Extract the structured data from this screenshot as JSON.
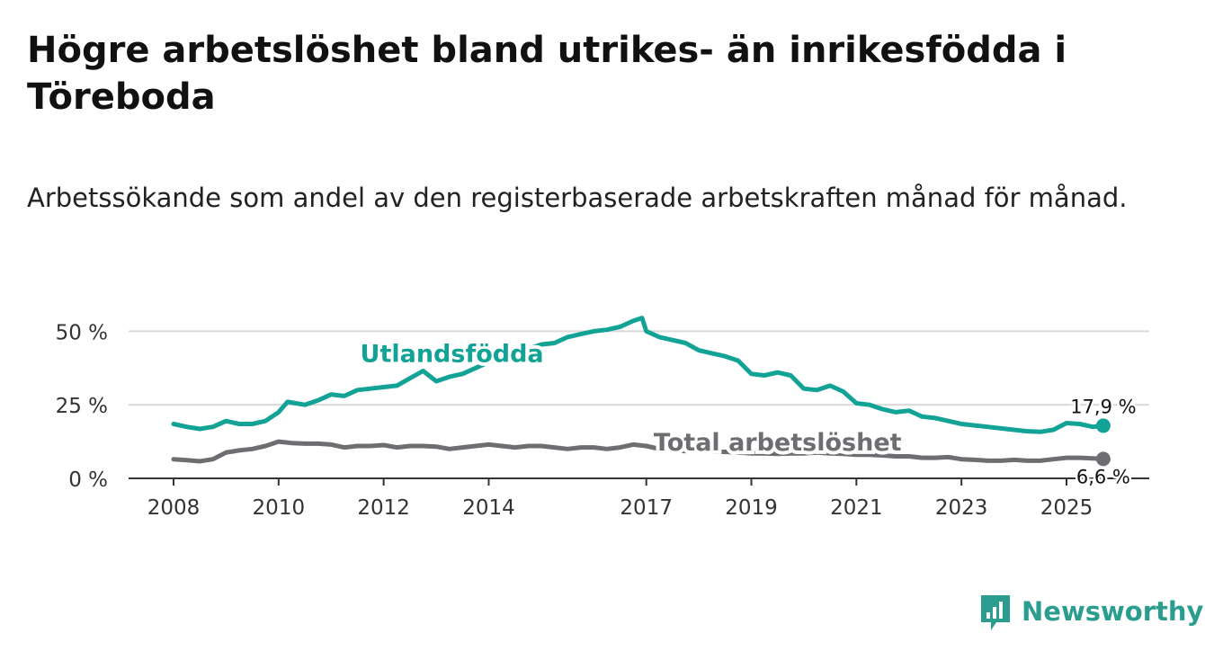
{
  "title": "Högre arbetslöshet bland utrikes- än inrikesfödda i Töreboda",
  "subtitle": "Arbetssökande som andel av den registerbaserade arbetskraften månad för månad.",
  "brand": {
    "name": "Newsworthy",
    "logo_icon": "bar-chart-icon"
  },
  "colors": {
    "foreign": "#13a396",
    "total": "#6d6d72",
    "axis": "#333333",
    "grid": "#d9d9d9",
    "brand": "#2a9d8f"
  },
  "chart_data": {
    "type": "line",
    "title": "",
    "xlabel": "",
    "ylabel": "",
    "ylim": [
      0,
      55
    ],
    "xlim": [
      2007.7,
      2026.5
    ],
    "y_ticks": [
      {
        "value": 0,
        "label": "0 %"
      },
      {
        "value": 25,
        "label": "25 %"
      },
      {
        "value": 50,
        "label": "50 %"
      }
    ],
    "x_ticks": [
      {
        "value": 2008,
        "label": "2008"
      },
      {
        "value": 2010,
        "label": "2010"
      },
      {
        "value": 2012,
        "label": "2012"
      },
      {
        "value": 2014,
        "label": "2014"
      },
      {
        "value": 2017,
        "label": "2017"
      },
      {
        "value": 2019,
        "label": "2019"
      },
      {
        "value": 2021,
        "label": "2021"
      },
      {
        "value": 2023,
        "label": "2023"
      },
      {
        "value": 2025,
        "label": "2025"
      }
    ],
    "series": [
      {
        "name": "Utlandsfödda",
        "color": "#13a396",
        "end_label": "17,9 %",
        "x": [
          2008.0,
          2008.25,
          2008.5,
          2008.75,
          2009.0,
          2009.25,
          2009.5,
          2009.75,
          2010.0,
          2010.17,
          2010.5,
          2010.75,
          2011.0,
          2011.25,
          2011.5,
          2011.75,
          2012.0,
          2012.25,
          2012.5,
          2012.75,
          2013.0,
          2013.25,
          2013.5,
          2013.75,
          2014.0,
          2014.25,
          2014.5,
          2014.75,
          2015.0,
          2015.25,
          2015.5,
          2015.75,
          2016.0,
          2016.25,
          2016.5,
          2016.75,
          2016.92,
          2017.0,
          2017.25,
          2017.5,
          2017.75,
          2018.0,
          2018.25,
          2018.5,
          2018.75,
          2019.0,
          2019.25,
          2019.5,
          2019.75,
          2020.0,
          2020.25,
          2020.5,
          2020.75,
          2021.0,
          2021.25,
          2021.5,
          2021.75,
          2022.0,
          2022.25,
          2022.5,
          2022.75,
          2023.0,
          2023.25,
          2023.5,
          2023.75,
          2024.0,
          2024.25,
          2024.5,
          2024.75,
          2025.0,
          2025.25,
          2025.5,
          2025.7
        ],
        "values": [
          18.5,
          17.5,
          16.8,
          17.5,
          19.5,
          18.5,
          18.5,
          19.5,
          22.5,
          26.0,
          25.0,
          26.5,
          28.5,
          28.0,
          30.0,
          30.5,
          31.0,
          31.5,
          34.0,
          36.5,
          33.0,
          34.5,
          35.5,
          37.5,
          39.5,
          41.0,
          43.0,
          44.0,
          45.5,
          46.0,
          48.0,
          49.0,
          50.0,
          50.5,
          51.5,
          53.5,
          54.5,
          50.0,
          48.0,
          47.0,
          46.0,
          43.5,
          42.5,
          41.5,
          40.0,
          35.5,
          35.0,
          36.0,
          35.0,
          30.5,
          30.0,
          31.5,
          29.5,
          25.5,
          25.0,
          23.5,
          22.5,
          23.0,
          21.0,
          20.5,
          19.5,
          18.5,
          18.0,
          17.5,
          17.0,
          16.5,
          16.0,
          15.8,
          16.5,
          18.8,
          18.5,
          17.5,
          17.9
        ]
      },
      {
        "name": "Total arbetslöshet",
        "color": "#6d6d72",
        "end_label": "6,6 %",
        "x": [
          2008.0,
          2008.25,
          2008.5,
          2008.75,
          2009.0,
          2009.25,
          2009.5,
          2009.75,
          2010.0,
          2010.25,
          2010.5,
          2010.75,
          2011.0,
          2011.25,
          2011.5,
          2011.75,
          2012.0,
          2012.25,
          2012.5,
          2012.75,
          2013.0,
          2013.25,
          2013.5,
          2013.75,
          2014.0,
          2014.25,
          2014.5,
          2014.75,
          2015.0,
          2015.25,
          2015.5,
          2015.75,
          2016.0,
          2016.25,
          2016.5,
          2016.75,
          2017.0,
          2017.25,
          2017.5,
          2017.75,
          2018.0,
          2018.25,
          2018.5,
          2018.75,
          2019.0,
          2019.25,
          2019.5,
          2019.75,
          2020.0,
          2020.25,
          2020.5,
          2020.75,
          2021.0,
          2021.25,
          2021.5,
          2021.75,
          2022.0,
          2022.25,
          2022.5,
          2022.75,
          2023.0,
          2023.25,
          2023.5,
          2023.75,
          2024.0,
          2024.25,
          2024.5,
          2024.75,
          2025.0,
          2025.25,
          2025.5,
          2025.7
        ],
        "values": [
          6.5,
          6.2,
          5.8,
          6.5,
          8.8,
          9.5,
          10.0,
          11.0,
          12.5,
          12.0,
          11.8,
          11.8,
          11.5,
          10.5,
          11.0,
          11.0,
          11.3,
          10.5,
          11.0,
          11.0,
          10.8,
          10.0,
          10.5,
          11.0,
          11.5,
          11.0,
          10.5,
          11.0,
          11.0,
          10.5,
          10.0,
          10.5,
          10.5,
          10.0,
          10.5,
          11.5,
          11.0,
          10.0,
          9.5,
          9.3,
          9.0,
          9.0,
          9.0,
          8.8,
          8.5,
          8.5,
          8.3,
          8.5,
          8.5,
          8.8,
          8.5,
          8.3,
          8.0,
          8.0,
          7.8,
          7.5,
          7.5,
          7.0,
          7.0,
          7.2,
          6.5,
          6.3,
          6.0,
          6.0,
          6.3,
          6.0,
          6.0,
          6.5,
          7.0,
          7.0,
          6.8,
          6.6
        ]
      }
    ],
    "annotations": [
      {
        "text": "Utlandsfödda",
        "series": "Utlandsfödda",
        "x": 2013.3,
        "y": 39.5
      },
      {
        "text": "Total arbetslöshet",
        "series": "Total arbetslöshet",
        "x": 2019.5,
        "y": 9.5
      }
    ]
  }
}
